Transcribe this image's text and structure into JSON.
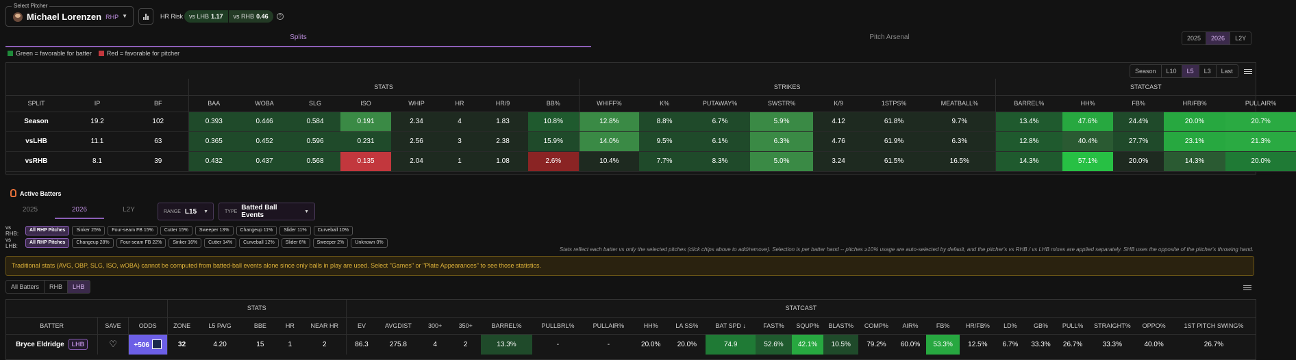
{
  "pitcher_select": {
    "legend": "Select Pitcher",
    "name": "Michael Lorenzen",
    "hand": "RHP"
  },
  "hr_risk": {
    "label": "HR Risk",
    "lhb_label": "vs LHB",
    "lhb_value": "1.17",
    "rhb_label": "vs RHB",
    "rhb_value": "0.46"
  },
  "top_tabs": {
    "splits": "Splits",
    "arsenal": "Pitch Arsenal"
  },
  "season_seg": [
    "2025",
    "2026",
    "L2Y"
  ],
  "season_seg_active": "2026",
  "color_legend": {
    "green": "Green = favorable for batter",
    "red": "Red = favorable for pitcher",
    "green_color": "#1f8a3a",
    "red_color": "#c2373d"
  },
  "range_seg": [
    "Season",
    "L10",
    "L5",
    "L3",
    "Last"
  ],
  "range_seg_active": "L5",
  "splits": {
    "groups": {
      "stats": "STATS",
      "strikes": "STRIKES",
      "statcast": "STATCAST"
    },
    "headers": [
      "SPLIT",
      "IP",
      "BF",
      "BAA",
      "WOBA",
      "SLG",
      "ISO",
      "WHIP",
      "HR",
      "HR/9",
      "BB%",
      "WHIFF%",
      "K%",
      "PUTAWAY%",
      "SWSTR%",
      "K/9",
      "1STPS%",
      "MEATBALL%",
      "BARREL%",
      "HH%",
      "FB%",
      "HR/FB%",
      "PULLAIR%"
    ],
    "rows": [
      [
        "Season",
        "19.2",
        "102",
        "0.393",
        "0.446",
        "0.584",
        "0.191",
        "2.34",
        "4",
        "1.83",
        "10.8%",
        "12.8%",
        "8.8%",
        "6.7%",
        "5.9%",
        "4.12",
        "61.8%",
        "9.7%",
        "13.4%",
        "47.6%",
        "24.4%",
        "20.0%",
        "20.7%"
      ],
      [
        "vsLHB",
        "11.1",
        "63",
        "0.365",
        "0.452",
        "0.596",
        "0.231",
        "2.56",
        "3",
        "2.38",
        "15.9%",
        "14.0%",
        "9.5%",
        "6.1%",
        "6.3%",
        "4.76",
        "61.9%",
        "6.3%",
        "12.8%",
        "40.4%",
        "27.7%",
        "23.1%",
        "21.3%"
      ],
      [
        "vsRHB",
        "8.1",
        "39",
        "0.432",
        "0.437",
        "0.568",
        "0.135",
        "2.04",
        "1",
        "1.08",
        "2.6%",
        "10.4%",
        "7.7%",
        "8.3%",
        "5.0%",
        "3.24",
        "61.5%",
        "16.5%",
        "14.3%",
        "57.1%",
        "20.0%",
        "14.3%",
        "20.0%"
      ]
    ],
    "colors": [
      [
        "",
        "",
        "",
        "#1f4a2a",
        "#1f4a2a",
        "#1f4a2a",
        "#3a8a45",
        "#1e2a20",
        "#1e2a20",
        "#1e2a20",
        "#1f5a2e",
        "#3a8a45",
        "#1f4a2a",
        "#1f4a2a",
        "#3a8a45",
        "#1e2a20",
        "#1e2a20",
        "#1e2a20",
        "#1f5a2e",
        "#27a840",
        "#1f4a2a",
        "#27a840",
        "#2aaa42"
      ],
      [
        "",
        "",
        "",
        "#1f4a2a",
        "#1f4a2a",
        "#1f4a2a",
        "#1f4a2a",
        "#1e2a20",
        "#1e2a20",
        "#1e2a20",
        "#1f4a2a",
        "#3a8a45",
        "#1f4a2a",
        "#1f4a2a",
        "#3a8a45",
        "#1e2a20",
        "#1e2a20",
        "#1e2a20",
        "#1f5a2e",
        "#2a5a32",
        "#1f4a2a",
        "#27a840",
        "#2aaa42"
      ],
      [
        "",
        "",
        "",
        "#1f4a2a",
        "#1f4a2a",
        "#1f4a2a",
        "#c2373d",
        "#1e2a20",
        "#1e2a20",
        "#1e2a20",
        "#8a2424",
        "#1e2a20",
        "#1f4a2a",
        "#1f4a2a",
        "#3a8a45",
        "#1e2a20",
        "#1e2a20",
        "#1e2a20",
        "#1f5a2e",
        "#27c044",
        "#1e2a20",
        "#2a5a32",
        "#1f7a35"
      ]
    ]
  },
  "active_batters": {
    "title": "Active Batters",
    "year_tabs": [
      "2025",
      "2026",
      "L2Y"
    ],
    "year_active": "2026",
    "range_key": "RANGE",
    "range_val": "L15",
    "type_key": "TYPE",
    "type_val": "Batted Ball Events"
  },
  "chips": {
    "rhb_label": "vs RHB:",
    "rhb": [
      "All RHP Pitches",
      "Sinker 25%",
      "Four-seam FB 15%",
      "Cutter 15%",
      "Sweeper 13%",
      "Changeup 11%",
      "Slider 11%",
      "Curveball 10%"
    ],
    "lhb_label": "vs LHB:",
    "lhb": [
      "All RHP Pitches",
      "Changeup 28%",
      "Four-seam FB 22%",
      "Sinker 16%",
      "Cutter 14%",
      "Curveball 12%",
      "Slider 6%",
      "Sweeper 2%",
      "Unknown 0%"
    ]
  },
  "note": "Stats reflect each batter vs only the selected pitches (click chips above to add/remove). Selection is per batter hand -- pitches ≥10% usage are auto-selected by default, and the pitcher's vs RHB / vs LHB mixes are applied separately. SHB uses the opposite of the pitcher's throwing hand.",
  "warning": "Traditional stats (AVG, OBP, SLG, ISO, wOBA) cannot be computed from batted-ball events alone since only balls in play are used. Select \"Games\" or \"Plate Appearances\" to see those statistics.",
  "batter_filter": [
    "All Batters",
    "RHB",
    "LHB"
  ],
  "batter_filter_active": "LHB",
  "batters": {
    "groups": {
      "stats": "STATS",
      "statcast": "STATCAST"
    },
    "headers": [
      "BATTER",
      "SAVE",
      "ODDS",
      "ZONE",
      "L5 PA/G",
      "BBE",
      "HR",
      "NEAR HR",
      "EV",
      "AVGDIST",
      "300+",
      "350+",
      "BARREL%",
      "PULLBRL%",
      "PULLAIR%",
      "HH%",
      "LA SS%",
      "BAT SPD ↓",
      "FAST%",
      "SQUP%",
      "BLAST%",
      "COMP%",
      "AIR%",
      "FB%",
      "HR/FB%",
      "LD%",
      "GB%",
      "PULL%",
      "STRAIGHT%",
      "OPPO%",
      "1ST PITCH SWING%"
    ],
    "row": {
      "name": "Bryce Eldridge",
      "hand": "LHB",
      "odds": "+506",
      "values": [
        "32",
        "4.20",
        "15",
        "1",
        "2",
        "86.3",
        "275.8",
        "4",
        "2",
        "13.3%",
        "-",
        "-",
        "20.0%",
        "20.0%",
        "74.9",
        "52.6%",
        "42.1%",
        "10.5%",
        "79.2%",
        "60.0%",
        "53.3%",
        "12.5%",
        "6.7%",
        "33.3%",
        "26.7%",
        "33.3%",
        "40.0%",
        "26.7%"
      ],
      "colors": [
        "",
        "",
        "",
        "",
        "",
        "",
        "",
        "",
        "",
        "#1f4a2a",
        "",
        "",
        "",
        "",
        "#1f7a35",
        "#1f5a2e",
        "#27a840",
        "#1f4a2a",
        "",
        "",
        "#27a840",
        "",
        "",
        "",
        "",
        "",
        "",
        ""
      ]
    }
  }
}
